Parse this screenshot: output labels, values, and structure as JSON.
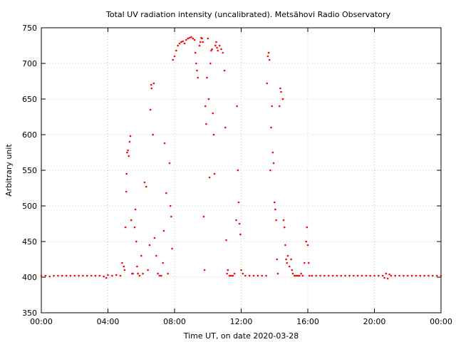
{
  "chart_data": {
    "type": "scatter",
    "title": "Total UV radiation intensity (uncalibrated). Metsähovi Radio Observatory",
    "xlabel": "Time UT, on date 2020-03-28",
    "ylabel": "Arbitrary unit",
    "xlim": [
      0,
      24
    ],
    "ylim": [
      350,
      750
    ],
    "x_ticks": [
      {
        "value": 0,
        "label": "00:00"
      },
      {
        "value": 4,
        "label": "04:00"
      },
      {
        "value": 8,
        "label": "08:00"
      },
      {
        "value": 12,
        "label": "12:00"
      },
      {
        "value": 16,
        "label": "16:00"
      },
      {
        "value": 20,
        "label": "20:00"
      },
      {
        "value": 24,
        "label": "00:00"
      }
    ],
    "y_ticks": [
      {
        "value": 350,
        "label": "350"
      },
      {
        "value": 400,
        "label": "400"
      },
      {
        "value": 450,
        "label": "450"
      },
      {
        "value": 500,
        "label": "500"
      },
      {
        "value": 550,
        "label": "550"
      },
      {
        "value": 600,
        "label": "600"
      },
      {
        "value": 650,
        "label": "650"
      },
      {
        "value": 700,
        "label": "700"
      },
      {
        "value": 750,
        "label": "750"
      }
    ],
    "grid": true,
    "marker_color": "#ff0000",
    "series": [
      {
        "name": "",
        "points": [
          [
            0.0,
            402
          ],
          [
            0.25,
            402
          ],
          [
            0.5,
            401
          ],
          [
            0.75,
            402
          ],
          [
            1.0,
            402
          ],
          [
            1.25,
            402
          ],
          [
            1.5,
            402
          ],
          [
            1.75,
            402
          ],
          [
            2.0,
            402
          ],
          [
            2.25,
            402
          ],
          [
            2.5,
            402
          ],
          [
            2.75,
            402
          ],
          [
            3.0,
            402
          ],
          [
            3.25,
            402
          ],
          [
            3.5,
            402
          ],
          [
            3.75,
            401
          ],
          [
            3.9,
            399
          ],
          [
            4.0,
            403
          ],
          [
            4.25,
            402
          ],
          [
            4.5,
            403
          ],
          [
            4.75,
            402
          ],
          [
            4.85,
            420
          ],
          [
            4.95,
            415
          ],
          [
            5.0,
            410
          ],
          [
            5.05,
            470
          ],
          [
            5.1,
            520
          ],
          [
            5.12,
            545
          ],
          [
            5.15,
            575
          ],
          [
            5.2,
            578
          ],
          [
            5.25,
            570
          ],
          [
            5.3,
            590
          ],
          [
            5.35,
            598
          ],
          [
            5.4,
            480
          ],
          [
            5.45,
            405
          ],
          [
            5.5,
            405
          ],
          [
            5.6,
            470
          ],
          [
            5.65,
            495
          ],
          [
            5.7,
            450
          ],
          [
            5.75,
            415
          ],
          [
            5.8,
            405
          ],
          [
            5.9,
            402
          ],
          [
            6.0,
            430
          ],
          [
            6.1,
            405
          ],
          [
            6.2,
            533
          ],
          [
            6.3,
            527
          ],
          [
            6.4,
            410
          ],
          [
            6.5,
            445
          ],
          [
            6.55,
            635
          ],
          [
            6.6,
            670
          ],
          [
            6.62,
            665
          ],
          [
            6.7,
            600
          ],
          [
            6.75,
            672
          ],
          [
            6.8,
            455
          ],
          [
            6.9,
            430
          ],
          [
            7.0,
            405
          ],
          [
            7.1,
            402
          ],
          [
            7.2,
            402
          ],
          [
            7.3,
            420
          ],
          [
            7.35,
            465
          ],
          [
            7.4,
            588
          ],
          [
            7.5,
            518
          ],
          [
            7.6,
            405
          ],
          [
            7.7,
            560
          ],
          [
            7.75,
            500
          ],
          [
            7.8,
            485
          ],
          [
            7.85,
            440
          ],
          [
            7.9,
            705
          ],
          [
            8.0,
            710
          ],
          [
            8.1,
            718
          ],
          [
            8.2,
            725
          ],
          [
            8.3,
            728
          ],
          [
            8.4,
            730
          ],
          [
            8.5,
            731
          ],
          [
            8.6,
            728
          ],
          [
            8.7,
            733
          ],
          [
            8.8,
            735
          ],
          [
            8.9,
            736
          ],
          [
            9.0,
            737
          ],
          [
            9.1,
            735
          ],
          [
            9.2,
            733
          ],
          [
            9.25,
            715
          ],
          [
            9.3,
            700
          ],
          [
            9.35,
            690
          ],
          [
            9.4,
            680
          ],
          [
            9.5,
            725
          ],
          [
            9.55,
            730
          ],
          [
            9.6,
            736
          ],
          [
            9.65,
            735
          ],
          [
            9.7,
            730
          ],
          [
            9.75,
            485
          ],
          [
            9.8,
            410
          ],
          [
            9.85,
            640
          ],
          [
            9.9,
            615
          ],
          [
            9.95,
            680
          ],
          [
            10.0,
            735
          ],
          [
            10.05,
            650
          ],
          [
            10.1,
            540
          ],
          [
            10.15,
            700
          ],
          [
            10.2,
            718
          ],
          [
            10.25,
            720
          ],
          [
            10.3,
            630
          ],
          [
            10.35,
            600
          ],
          [
            10.4,
            545
          ],
          [
            10.45,
            725
          ],
          [
            10.5,
            730
          ],
          [
            10.55,
            722
          ],
          [
            10.6,
            718
          ],
          [
            10.7,
            725
          ],
          [
            10.8,
            720
          ],
          [
            10.9,
            715
          ],
          [
            11.0,
            690
          ],
          [
            11.05,
            610
          ],
          [
            11.1,
            452
          ],
          [
            11.15,
            405
          ],
          [
            11.2,
            410
          ],
          [
            11.3,
            402
          ],
          [
            11.4,
            402
          ],
          [
            11.5,
            402
          ],
          [
            11.6,
            405
          ],
          [
            11.7,
            480
          ],
          [
            11.75,
            640
          ],
          [
            11.8,
            550
          ],
          [
            11.85,
            505
          ],
          [
            11.9,
            475
          ],
          [
            11.95,
            460
          ],
          [
            12.0,
            410
          ],
          [
            12.1,
            405
          ],
          [
            12.25,
            402
          ],
          [
            12.5,
            402
          ],
          [
            12.75,
            402
          ],
          [
            13.0,
            402
          ],
          [
            13.25,
            402
          ],
          [
            13.5,
            402
          ],
          [
            13.55,
            672
          ],
          [
            13.6,
            710
          ],
          [
            13.65,
            715
          ],
          [
            13.7,
            705
          ],
          [
            13.75,
            550
          ],
          [
            13.8,
            610
          ],
          [
            13.85,
            640
          ],
          [
            13.9,
            575
          ],
          [
            13.95,
            560
          ],
          [
            14.0,
            505
          ],
          [
            14.05,
            495
          ],
          [
            14.1,
            480
          ],
          [
            14.15,
            425
          ],
          [
            14.2,
            405
          ],
          [
            14.3,
            640
          ],
          [
            14.35,
            665
          ],
          [
            14.4,
            660
          ],
          [
            14.5,
            650
          ],
          [
            14.55,
            480
          ],
          [
            14.6,
            470
          ],
          [
            14.65,
            445
          ],
          [
            14.7,
            425
          ],
          [
            14.75,
            420
          ],
          [
            14.8,
            430
          ],
          [
            14.9,
            415
          ],
          [
            15.0,
            425
          ],
          [
            15.05,
            410
          ],
          [
            15.1,
            405
          ],
          [
            15.2,
            402
          ],
          [
            15.3,
            402
          ],
          [
            15.4,
            402
          ],
          [
            15.5,
            402
          ],
          [
            15.6,
            405
          ],
          [
            15.7,
            402
          ],
          [
            15.8,
            420
          ],
          [
            15.9,
            450
          ],
          [
            15.95,
            470
          ],
          [
            16.0,
            445
          ],
          [
            16.05,
            420
          ],
          [
            16.1,
            402
          ],
          [
            16.25,
            402
          ],
          [
            16.5,
            402
          ],
          [
            16.75,
            402
          ],
          [
            17.0,
            402
          ],
          [
            17.25,
            402
          ],
          [
            17.5,
            402
          ],
          [
            17.75,
            402
          ],
          [
            18.0,
            402
          ],
          [
            18.25,
            402
          ],
          [
            18.5,
            402
          ],
          [
            18.75,
            402
          ],
          [
            19.0,
            402
          ],
          [
            19.25,
            402
          ],
          [
            19.5,
            402
          ],
          [
            19.75,
            402
          ],
          [
            20.0,
            402
          ],
          [
            20.25,
            402
          ],
          [
            20.5,
            402
          ],
          [
            20.6,
            399
          ],
          [
            20.7,
            405
          ],
          [
            20.8,
            398
          ],
          [
            20.9,
            404
          ],
          [
            21.0,
            402
          ],
          [
            21.25,
            402
          ],
          [
            21.5,
            402
          ],
          [
            21.75,
            402
          ],
          [
            22.0,
            402
          ],
          [
            22.25,
            402
          ],
          [
            22.5,
            402
          ],
          [
            22.75,
            402
          ],
          [
            23.0,
            402
          ],
          [
            23.25,
            402
          ],
          [
            23.5,
            402
          ],
          [
            23.75,
            402
          ],
          [
            24.0,
            402
          ]
        ]
      }
    ]
  }
}
